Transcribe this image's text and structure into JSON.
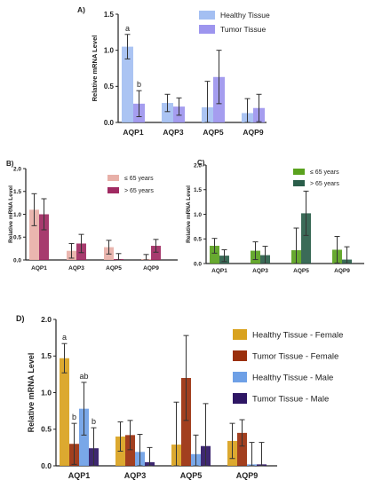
{
  "chart_data": [
    {
      "panel_label": "A)",
      "type": "bar",
      "ylabel": "Relative mRNA Level",
      "ylim": [
        0,
        1.5
      ],
      "yticks": [
        0.0,
        0.5,
        1.0,
        1.5
      ],
      "categories": [
        "AQP1",
        "AQP3",
        "AQP5",
        "AQP9"
      ],
      "legend_placement": "top-right",
      "series": [
        {
          "name": "Healthy Tissue",
          "color": "#a4bff2",
          "values": [
            1.05,
            0.27,
            0.21,
            0.13
          ],
          "errors": [
            0.17,
            0.12,
            0.36,
            0.2
          ]
        },
        {
          "name": "Tumor Tissue",
          "color": "#9d95ee",
          "values": [
            0.26,
            0.22,
            0.63,
            0.2
          ],
          "errors": [
            0.18,
            0.12,
            0.37,
            0.19
          ]
        }
      ],
      "annotations": [
        {
          "category": "AQP1",
          "series": 0,
          "text": "a"
        },
        {
          "category": "AQP1",
          "series": 1,
          "text": "b"
        }
      ]
    },
    {
      "panel_label": "B)",
      "type": "bar",
      "ylabel": "Relative mRNA Level",
      "ylim": [
        0,
        2.0
      ],
      "yticks": [
        0.0,
        0.5,
        1.0,
        1.5,
        2.0
      ],
      "categories": [
        "AQP1",
        "AQP3",
        "AQP5",
        "AQP9"
      ],
      "legend_placement": "top-right",
      "series": [
        {
          "name": "≤ 65 years",
          "color": "#e8b0a8",
          "values": [
            1.1,
            0.2,
            0.28,
            0.02
          ],
          "errors": [
            0.35,
            0.16,
            0.15,
            0.1
          ]
        },
        {
          "name": "> 65 years",
          "color": "#a02a62",
          "values": [
            1.0,
            0.36,
            0.02,
            0.31
          ],
          "errors": [
            0.34,
            0.2,
            0.12,
            0.14
          ]
        }
      ]
    },
    {
      "panel_label": "C)",
      "type": "bar",
      "ylabel": "Relative mRNA Level",
      "ylim": [
        0,
        2.0
      ],
      "yticks": [
        0.0,
        0.5,
        1.0,
        1.5,
        2.0
      ],
      "categories": [
        "AQP1",
        "AQP3",
        "AQP5",
        "AQP9"
      ],
      "legend_placement": "top-right",
      "series": [
        {
          "name": "≤ 65 years",
          "color": "#5aa21e",
          "values": [
            0.36,
            0.26,
            0.27,
            0.28
          ],
          "errors": [
            0.15,
            0.18,
            0.45,
            0.27
          ]
        },
        {
          "name": "> 65 years",
          "color": "#2a5e4a",
          "values": [
            0.16,
            0.17,
            1.02,
            0.08
          ],
          "errors": [
            0.12,
            0.18,
            0.45,
            0.26
          ]
        }
      ]
    },
    {
      "panel_label": "D)",
      "type": "bar",
      "ylabel": "Relative mRNA Level",
      "ylim": [
        0,
        2.0
      ],
      "yticks": [
        0.0,
        0.5,
        1.0,
        1.5,
        2.0
      ],
      "categories": [
        "AQP1",
        "AQP3",
        "AQP5",
        "AQP9"
      ],
      "legend_placement": "right",
      "series": [
        {
          "name": "Healthy Tissue - Female",
          "color": "#d9a21e",
          "values": [
            1.47,
            0.4,
            0.29,
            0.34
          ],
          "errors": [
            0.2,
            0.2,
            0.58,
            0.24
          ]
        },
        {
          "name": "Tumor Tissue - Female",
          "color": "#9a2f0c",
          "values": [
            0.3,
            0.42,
            1.2,
            0.45
          ],
          "errors": [
            0.28,
            0.2,
            0.58,
            0.18
          ]
        },
        {
          "name": "Healthy Tissue - Male",
          "color": "#6ea0e6",
          "values": [
            0.78,
            0.19,
            0.16,
            0.02
          ],
          "errors": [
            0.36,
            0.24,
            0.26,
            0.3
          ]
        },
        {
          "name": "Tumor Tissue - Male",
          "color": "#2e1664",
          "values": [
            0.24,
            0.05,
            0.27,
            0.02
          ],
          "errors": [
            0.28,
            0.2,
            0.58,
            0.3
          ]
        }
      ],
      "annotations": [
        {
          "category": "AQP1",
          "series": 0,
          "text": "a"
        },
        {
          "category": "AQP1",
          "series": 1,
          "text": "b"
        },
        {
          "category": "AQP1",
          "series": 2,
          "text": "ab"
        },
        {
          "category": "AQP1",
          "series": 3,
          "text": "b"
        }
      ]
    }
  ]
}
